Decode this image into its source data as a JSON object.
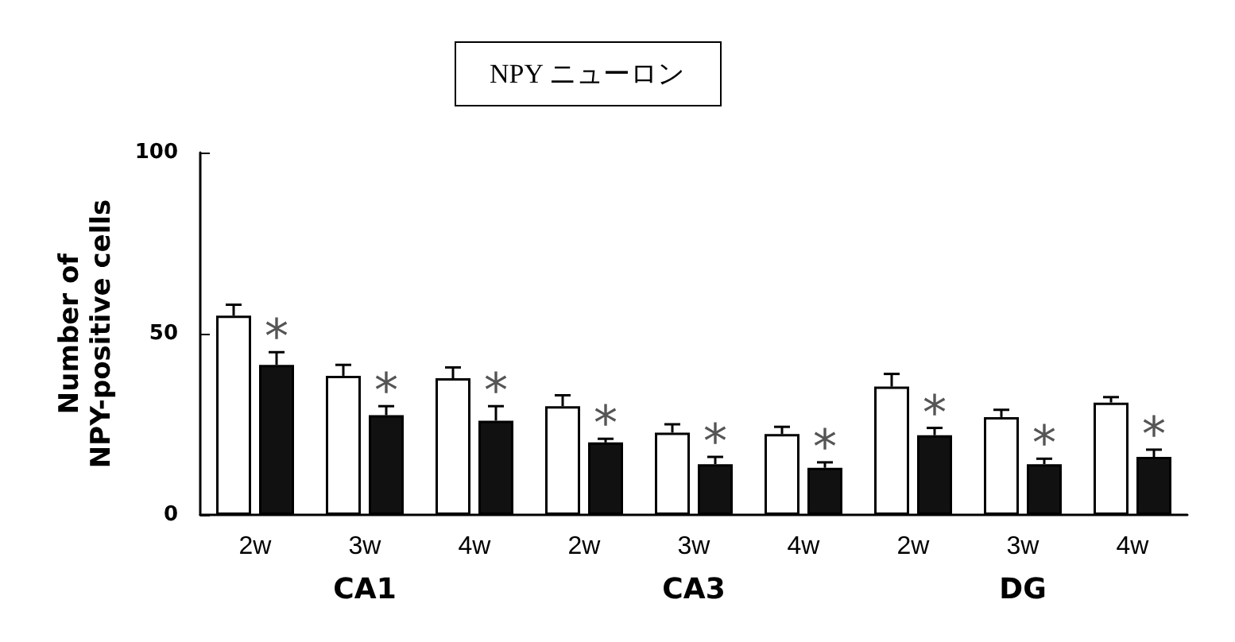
{
  "chart_data": {
    "type": "bar",
    "title": "NPY ニューロン",
    "ylabel": "Number of\nNPY-positive cells",
    "categories": [
      "2w",
      "3w",
      "4w",
      "2w",
      "3w",
      "4w",
      "2w",
      "3w",
      "4w"
    ],
    "annotations": [
      "CA1",
      "CA3",
      "DG"
    ],
    "series": [
      {
        "color": "#ffffff",
        "values": [
          55,
          38.4,
          37.7,
          30,
          22.7,
          22.3,
          35.4,
          27,
          31
        ],
        "errors": [
          3,
          3,
          3,
          3,
          2.3,
          2,
          3.5,
          2,
          1.5
        ]
      },
      {
        "color": "#111111",
        "values": [
          41.4,
          27.5,
          26,
          20,
          14,
          13,
          22,
          14,
          16
        ],
        "errors": [
          3.5,
          2.5,
          4,
          1,
          2,
          1.5,
          2,
          1.5,
          2
        ],
        "value_labels": [
          "*",
          "*",
          "*",
          "*",
          "*",
          "*",
          "*",
          "*",
          "*"
        ]
      }
    ],
    "ylim": [
      0,
      100
    ],
    "yticks": [
      0,
      50,
      100
    ],
    "grid": false
  }
}
